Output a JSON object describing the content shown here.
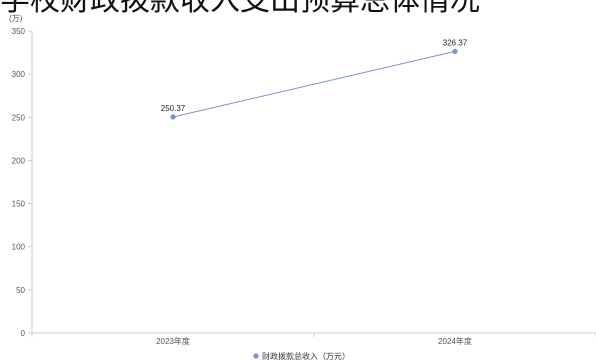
{
  "page_title_cropped": "学校财政拨款收入支出预算总体情况",
  "chart_data": {
    "type": "line",
    "title": "",
    "xlabel": "",
    "ylabel": "",
    "y_unit": "(万)",
    "categories": [
      "2023年度",
      "2024年度"
    ],
    "series": [
      {
        "name": "财政拨款总收入（万元）",
        "values": [
          250.37,
          326.37
        ],
        "data_labels": [
          "250.37",
          "326.37"
        ],
        "color": "#7b93d1"
      }
    ],
    "ylim": [
      0,
      350
    ],
    "y_ticks": [
      0,
      50,
      100,
      150,
      200,
      250,
      300,
      350
    ],
    "y_tick_labels": [
      "0",
      "50",
      "100",
      "150",
      "200",
      "250",
      "300",
      "350"
    ],
    "grid": false,
    "legend_position": "bottom-center"
  },
  "colors": {
    "axis": "#cccccc",
    "tick_text": "#555555",
    "series": "#7b93d1"
  }
}
